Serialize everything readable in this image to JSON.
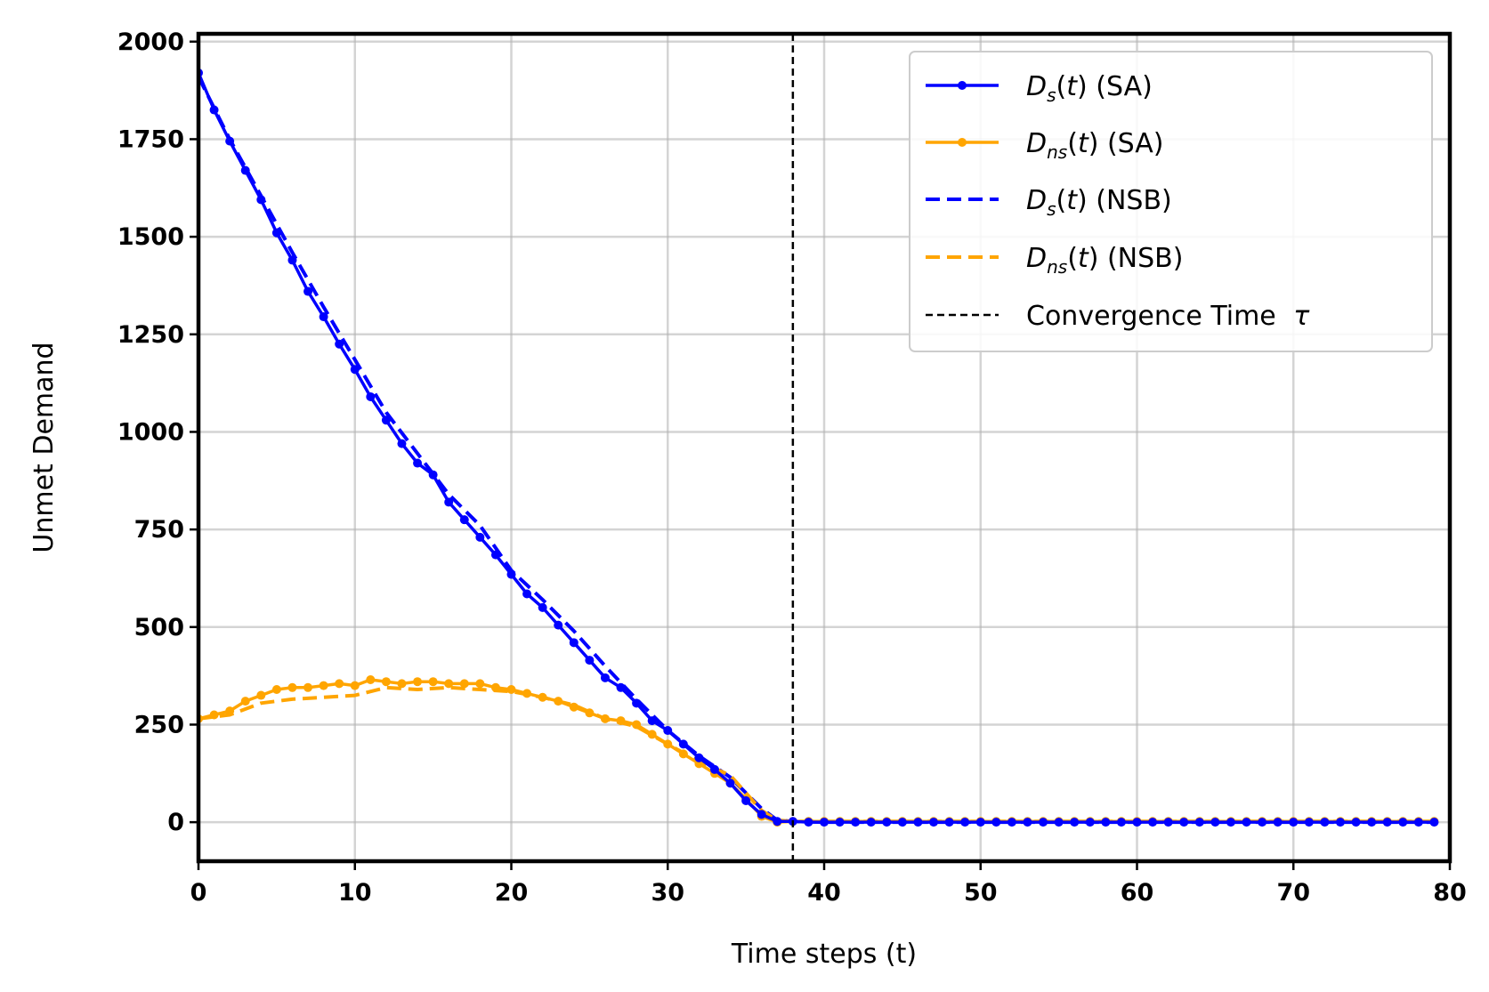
{
  "chart_data": {
    "type": "line",
    "title": "",
    "xlabel": "Time steps (t)",
    "ylabel": "Unmet Demand",
    "xlim": [
      0,
      80
    ],
    "ylim": [
      -100,
      2020
    ],
    "xticks": [
      "0",
      "10",
      "20",
      "30",
      "40",
      "50",
      "60",
      "70",
      "80"
    ],
    "yticks": [
      "0",
      "250",
      "500",
      "750",
      "1000",
      "1250",
      "1500",
      "1750",
      "2000"
    ],
    "grid": true,
    "legend_position": "top-right",
    "convergence_time": 38,
    "series": [
      {
        "legend": {
          "symbol": "D",
          "sub": "s",
          "rest": "(SA)"
        },
        "color": "#0000ff",
        "linestyle": "solid",
        "markers": true,
        "x": [
          0,
          1,
          2,
          3,
          4,
          5,
          6,
          7,
          8,
          9,
          10,
          11,
          12,
          13,
          14,
          15,
          16,
          17,
          18,
          19,
          20,
          21,
          22,
          23,
          24,
          25,
          26,
          27,
          28,
          29,
          30,
          31,
          32,
          33,
          34,
          35,
          36,
          37,
          38,
          39,
          40,
          41,
          42,
          43,
          44,
          45,
          46,
          47,
          48,
          49,
          50,
          51,
          52,
          53,
          54,
          55,
          56,
          57,
          58,
          59,
          60,
          61,
          62,
          63,
          64,
          65,
          66,
          67,
          68,
          69,
          70,
          71,
          72,
          73,
          74,
          75,
          76,
          77,
          78,
          79
        ],
        "y": [
          1920,
          1825,
          1745,
          1670,
          1595,
          1510,
          1440,
          1360,
          1295,
          1225,
          1160,
          1090,
          1030,
          970,
          920,
          890,
          820,
          775,
          730,
          685,
          635,
          585,
          550,
          505,
          460,
          415,
          370,
          345,
          305,
          260,
          235,
          200,
          165,
          135,
          100,
          55,
          20,
          2,
          2,
          0,
          0,
          0,
          0,
          0,
          0,
          0,
          0,
          0,
          0,
          0,
          0,
          0,
          0,
          0,
          0,
          0,
          0,
          0,
          0,
          0,
          0,
          0,
          0,
          0,
          0,
          0,
          0,
          0,
          0,
          0,
          0,
          0,
          0,
          0,
          0,
          0,
          0,
          0,
          0,
          0
        ]
      },
      {
        "legend": {
          "symbol": "D",
          "sub": "ns",
          "rest": "(SA)"
        },
        "color": "#ffa500",
        "linestyle": "solid",
        "markers": true,
        "x": [
          0,
          1,
          2,
          3,
          4,
          5,
          6,
          7,
          8,
          9,
          10,
          11,
          12,
          13,
          14,
          15,
          16,
          17,
          18,
          19,
          20,
          21,
          22,
          23,
          24,
          25,
          26,
          27,
          28,
          29,
          30,
          31,
          32,
          33,
          34,
          35,
          36,
          37,
          38,
          39,
          40,
          41,
          42,
          43,
          44,
          45,
          46,
          47,
          48,
          49,
          50,
          51,
          52,
          53,
          54,
          55,
          56,
          57,
          58,
          59,
          60,
          61,
          62,
          63,
          64,
          65,
          66,
          67,
          68,
          69,
          70,
          71,
          72,
          73,
          74,
          75,
          76,
          77,
          78,
          79
        ],
        "y": [
          265,
          275,
          285,
          310,
          325,
          340,
          345,
          345,
          350,
          355,
          350,
          365,
          360,
          355,
          360,
          360,
          355,
          355,
          355,
          345,
          340,
          330,
          320,
          310,
          295,
          280,
          265,
          260,
          250,
          225,
          200,
          175,
          150,
          125,
          100,
          60,
          15,
          0,
          2,
          2,
          2,
          2,
          2,
          2,
          2,
          2,
          2,
          2,
          2,
          2,
          2,
          2,
          2,
          2,
          2,
          2,
          2,
          2,
          2,
          2,
          2,
          2,
          2,
          2,
          2,
          2,
          2,
          2,
          2,
          2,
          2,
          2,
          2,
          2,
          2,
          2,
          2,
          2,
          2,
          2
        ]
      },
      {
        "legend": {
          "symbol": "D",
          "sub": "s",
          "rest": "(NSB)"
        },
        "color": "#0000ff",
        "linestyle": "dashed",
        "markers": false,
        "x": [
          0,
          2,
          4,
          6,
          8,
          10,
          12,
          14,
          16,
          18,
          20,
          22,
          24,
          26,
          28,
          30,
          32,
          34,
          36,
          37,
          38,
          40,
          50,
          60,
          70,
          79
        ],
        "y": [
          1910,
          1750,
          1605,
          1460,
          1320,
          1185,
          1050,
          945,
          840,
          760,
          645,
          570,
          490,
          400,
          315,
          235,
          170,
          115,
          35,
          5,
          2,
          0,
          0,
          0,
          0,
          0
        ]
      },
      {
        "legend": {
          "symbol": "D",
          "sub": "ns",
          "rest": "(NSB)"
        },
        "color": "#ffa500",
        "linestyle": "dashed",
        "markers": false,
        "x": [
          0,
          2,
          4,
          6,
          8,
          10,
          12,
          14,
          16,
          18,
          20,
          22,
          24,
          26,
          28,
          30,
          32,
          34,
          36,
          37,
          38,
          40,
          50,
          60,
          70,
          79
        ],
        "y": [
          265,
          275,
          305,
          315,
          320,
          325,
          345,
          340,
          345,
          340,
          335,
          320,
          300,
          265,
          245,
          200,
          155,
          120,
          30,
          5,
          2,
          2,
          2,
          2,
          2,
          2
        ]
      }
    ],
    "reference_line": {
      "legend": {
        "text": "Convergence Time",
        "symbol": "τ"
      },
      "color": "#000000",
      "linestyle": "dashed"
    }
  }
}
